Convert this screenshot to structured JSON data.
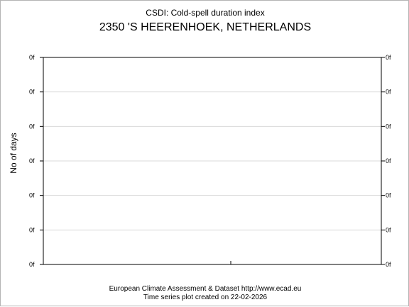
{
  "chart_data": {
    "type": "line",
    "title": "CSDI: Cold-spell duration index",
    "subtitle": "2350 'S HEERENHOEK, NETHERLANDS",
    "ylabel": "No of days",
    "xlabel": "",
    "y_tick_labels": [
      "0f",
      "0f",
      "0f",
      "0f",
      "0f",
      "0f",
      "0f"
    ],
    "x_tick_labels": [],
    "series": [],
    "grid": true,
    "right_axis_labels": true
  },
  "footer": {
    "line1": "European Climate Assessment & Dataset  http://www.ecad.eu",
    "line2": "Time series plot created on 22-02-2026"
  }
}
